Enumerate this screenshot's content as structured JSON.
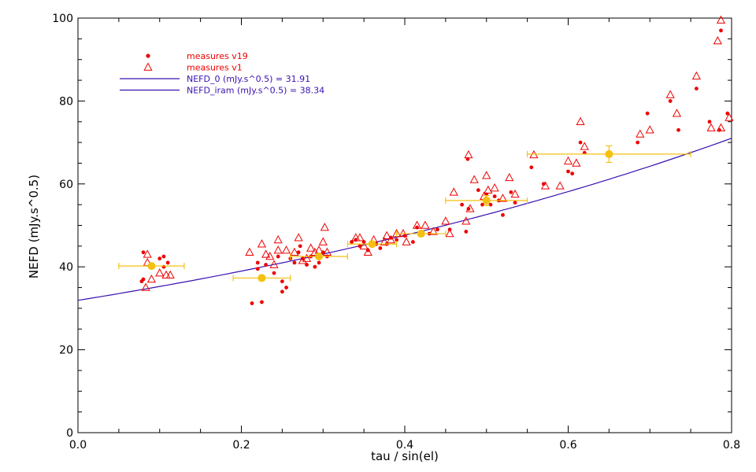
{
  "chart_data": {
    "type": "scatter",
    "xlabel": "tau / sin(el)",
    "ylabel": "NEFD (mJy.s^0.5)",
    "xlim": [
      0.0,
      0.8
    ],
    "ylim": [
      0,
      100
    ],
    "x_ticks": [
      "0.0",
      "0.2",
      "0.4",
      "0.6",
      "0.8"
    ],
    "y_ticks": [
      "0",
      "20",
      "40",
      "60",
      "80",
      "100"
    ],
    "x_tick_values": [
      0.0,
      0.2,
      0.4,
      0.6,
      0.8
    ],
    "y_tick_values": [
      0,
      20,
      40,
      60,
      80,
      100
    ],
    "grid": false,
    "legend_position": "top-left",
    "colors": {
      "v19": "#ee0000",
      "v1": "#ee0000",
      "binned": "#f5c010",
      "model_curve": "#3a10b0",
      "axes": "#000000"
    },
    "legend": [
      {
        "label": "measures v19",
        "marker": "filled-circle",
        "color": "#ee0000"
      },
      {
        "label": "measures v1",
        "marker": "open-triangle",
        "color": "#ee0000"
      },
      {
        "label": "NEFD_0 (mJy.s^0.5) = 31.91",
        "marker": "line",
        "color": "#3a10b0"
      },
      {
        "label": "NEFD_iram (mJy.s^0.5) = 38.34",
        "marker": "line",
        "color": "#3a10b0"
      }
    ],
    "series": [
      {
        "name": "measures v19",
        "marker": "filled-circle",
        "points": [
          [
            0.08,
            43.5
          ],
          [
            0.08,
            37
          ],
          [
            0.078,
            36.5
          ],
          [
            0.1,
            42
          ],
          [
            0.105,
            42.5
          ],
          [
            0.105,
            40
          ],
          [
            0.11,
            41
          ],
          [
            0.213,
            31.2
          ],
          [
            0.225,
            31.5
          ],
          [
            0.22,
            39.5
          ],
          [
            0.23,
            40.5
          ],
          [
            0.22,
            41
          ],
          [
            0.24,
            38.5
          ],
          [
            0.245,
            42.5
          ],
          [
            0.25,
            36.5
          ],
          [
            0.255,
            35
          ],
          [
            0.25,
            34
          ],
          [
            0.26,
            42
          ],
          [
            0.265,
            41
          ],
          [
            0.27,
            43.5
          ],
          [
            0.272,
            45
          ],
          [
            0.275,
            42
          ],
          [
            0.28,
            40.5
          ],
          [
            0.285,
            42.5
          ],
          [
            0.29,
            40
          ],
          [
            0.295,
            41
          ],
          [
            0.3,
            43.5
          ],
          [
            0.305,
            42.5
          ],
          [
            0.335,
            46
          ],
          [
            0.34,
            46.5
          ],
          [
            0.345,
            45
          ],
          [
            0.35,
            46
          ],
          [
            0.355,
            44
          ],
          [
            0.365,
            45.5
          ],
          [
            0.37,
            44.5
          ],
          [
            0.378,
            45.5
          ],
          [
            0.383,
            47
          ],
          [
            0.39,
            46.5
          ],
          [
            0.4,
            47.5
          ],
          [
            0.41,
            46
          ],
          [
            0.415,
            49.5
          ],
          [
            0.42,
            48.5
          ],
          [
            0.43,
            48
          ],
          [
            0.44,
            49
          ],
          [
            0.455,
            49
          ],
          [
            0.47,
            55
          ],
          [
            0.475,
            48.5
          ],
          [
            0.477,
            66
          ],
          [
            0.478,
            54
          ],
          [
            0.49,
            58.5
          ],
          [
            0.495,
            55
          ],
          [
            0.5,
            57.5
          ],
          [
            0.505,
            55
          ],
          [
            0.51,
            57
          ],
          [
            0.515,
            56
          ],
          [
            0.52,
            52.5
          ],
          [
            0.53,
            58
          ],
          [
            0.535,
            55.5
          ],
          [
            0.555,
            64
          ],
          [
            0.57,
            60
          ],
          [
            0.6,
            63
          ],
          [
            0.605,
            62.5
          ],
          [
            0.615,
            70
          ],
          [
            0.62,
            67.5
          ],
          [
            0.685,
            70
          ],
          [
            0.697,
            77
          ],
          [
            0.725,
            80
          ],
          [
            0.735,
            73
          ],
          [
            0.757,
            83
          ],
          [
            0.773,
            75
          ],
          [
            0.785,
            73
          ],
          [
            0.787,
            97
          ],
          [
            0.795,
            77
          ]
        ]
      },
      {
        "name": "measures v1",
        "marker": "open-triangle",
        "points": [
          [
            0.083,
            35
          ],
          [
            0.085,
            41
          ],
          [
            0.09,
            37
          ],
          [
            0.1,
            38.5
          ],
          [
            0.108,
            38
          ],
          [
            0.113,
            38
          ],
          [
            0.085,
            43
          ],
          [
            0.21,
            43.5
          ],
          [
            0.225,
            45.5
          ],
          [
            0.23,
            43
          ],
          [
            0.235,
            42.5
          ],
          [
            0.24,
            40.5
          ],
          [
            0.245,
            44
          ],
          [
            0.245,
            46.5
          ],
          [
            0.255,
            44
          ],
          [
            0.265,
            43.5
          ],
          [
            0.27,
            47
          ],
          [
            0.275,
            41.5
          ],
          [
            0.28,
            42
          ],
          [
            0.285,
            44.5
          ],
          [
            0.29,
            43.5
          ],
          [
            0.295,
            44
          ],
          [
            0.3,
            46
          ],
          [
            0.302,
            49.5
          ],
          [
            0.305,
            43.5
          ],
          [
            0.34,
            47
          ],
          [
            0.345,
            47
          ],
          [
            0.35,
            45
          ],
          [
            0.355,
            43.5
          ],
          [
            0.362,
            46.5
          ],
          [
            0.375,
            46
          ],
          [
            0.378,
            47.5
          ],
          [
            0.383,
            46.5
          ],
          [
            0.39,
            48
          ],
          [
            0.398,
            48
          ],
          [
            0.402,
            46
          ],
          [
            0.415,
            50
          ],
          [
            0.425,
            50
          ],
          [
            0.435,
            48.5
          ],
          [
            0.45,
            51
          ],
          [
            0.455,
            48
          ],
          [
            0.46,
            58
          ],
          [
            0.475,
            51
          ],
          [
            0.478,
            67
          ],
          [
            0.48,
            54
          ],
          [
            0.485,
            61
          ],
          [
            0.497,
            57
          ],
          [
            0.5,
            62
          ],
          [
            0.502,
            58.5
          ],
          [
            0.51,
            59
          ],
          [
            0.52,
            56.5
          ],
          [
            0.528,
            61.5
          ],
          [
            0.535,
            57.5
          ],
          [
            0.558,
            67
          ],
          [
            0.572,
            59.5
          ],
          [
            0.59,
            59.5
          ],
          [
            0.6,
            65.5
          ],
          [
            0.61,
            65
          ],
          [
            0.615,
            75
          ],
          [
            0.62,
            69
          ],
          [
            0.688,
            72
          ],
          [
            0.7,
            73
          ],
          [
            0.725,
            81.5
          ],
          [
            0.733,
            77
          ],
          [
            0.757,
            86
          ],
          [
            0.775,
            73.5
          ],
          [
            0.783,
            94.5
          ],
          [
            0.787,
            99.5
          ],
          [
            0.787,
            73.5
          ],
          [
            0.797,
            76
          ]
        ]
      },
      {
        "name": "binned",
        "marker": "filled-circle-errorbar",
        "points": [
          {
            "x": 0.09,
            "y": 40.2,
            "xerr": 0.04,
            "yerr": 0.3
          },
          {
            "x": 0.225,
            "y": 37.3,
            "xerr": 0.035,
            "yerr": 0.6
          },
          {
            "x": 0.295,
            "y": 42.5,
            "xerr": 0.035,
            "yerr": 0.3
          },
          {
            "x": 0.36,
            "y": 45.5,
            "xerr": 0.03,
            "yerr": 0.5
          },
          {
            "x": 0.42,
            "y": 48,
            "xerr": 0.03,
            "yerr": 0.5
          },
          {
            "x": 0.5,
            "y": 56,
            "xerr": 0.05,
            "yerr": 1.2
          },
          {
            "x": 0.65,
            "y": 67.2,
            "xerr": 0.1,
            "yerr": 2.0
          }
        ]
      },
      {
        "name": "model",
        "marker": "line",
        "curve": {
          "nefd0": 31.91,
          "k": 1.0
        }
      }
    ]
  }
}
